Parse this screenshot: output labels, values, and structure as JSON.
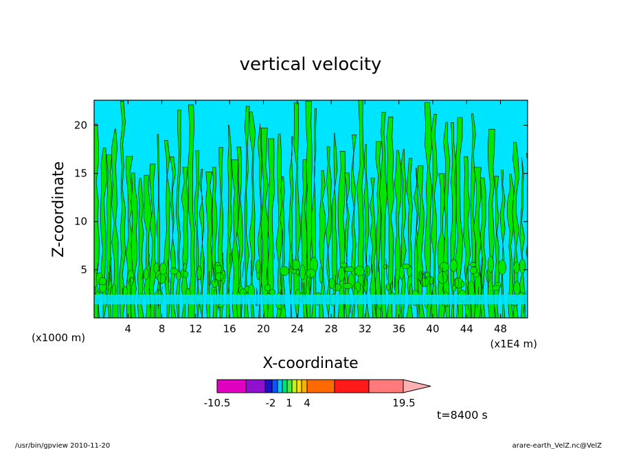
{
  "footer": {
    "left": "/usr/bin/gpview   2010-11-20",
    "right": "arare-earth_VelZ.nc@VelZ"
  },
  "chart_data": {
    "type": "heatmap",
    "title": "vertical velocity",
    "xlabel": "X-coordinate",
    "ylabel": "Z-coordinate",
    "x_unit_label": "(x1E4 m)",
    "y_unit_label": "(x1000 m)",
    "x_ticks": [
      "4",
      "8",
      "12",
      "16",
      "20",
      "24",
      "28",
      "32",
      "36",
      "40",
      "44",
      "48"
    ],
    "y_ticks": [
      "5",
      "10",
      "15",
      "20"
    ],
    "xlim": [
      0,
      51.2
    ],
    "ylim": [
      0,
      22.6
    ],
    "time_label": "t=8400 s",
    "colorbar": {
      "tick_labels": [
        "-10.5",
        "-2",
        "1",
        "4",
        "19.5"
      ],
      "colors": [
        "#e000c0",
        "#9010d0",
        "#1a10c8",
        "#1050ff",
        "#00c8ff",
        "#00e07a",
        "#40f040",
        "#c8f020",
        "#ffe000",
        "#ffb000",
        "#ff6a00",
        "#ff1a1a",
        "#ff7a7a",
        "#ffb0b0"
      ],
      "dominant_colors": {
        "negative_small": "#00e5ff",
        "positive_small": "#00e600"
      }
    }
  }
}
